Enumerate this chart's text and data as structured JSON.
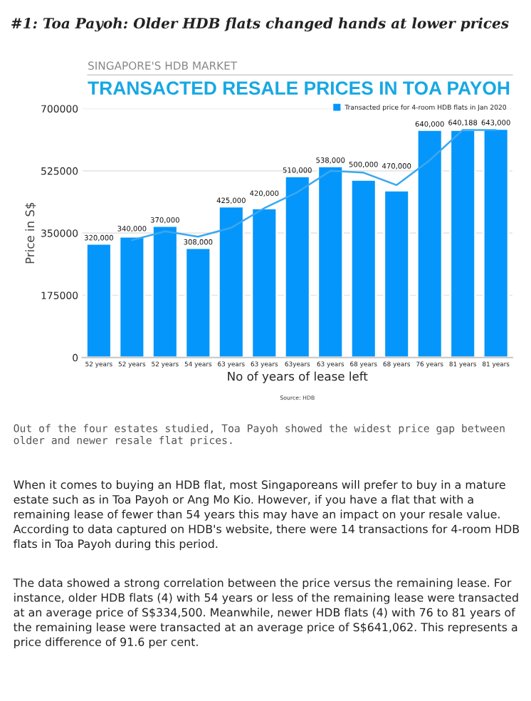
{
  "chart_data": {
    "type": "bar",
    "title": "#1: Toa Payoh: Older HDB flats changed hands at lower prices",
    "subtitle": "SINGAPORE'S HDB MARKET\nTRANSACTED RESALE PRICES IN TOA PAYOH",
    "xlabel": "No of years of lease left",
    "ylabel": "Price in S$",
    "categories": [
      "52 years",
      "52 years",
      "52 years",
      "54 years",
      "63 years",
      "63 years",
      "63years",
      "63 years",
      "68 years",
      "68 years",
      "76 years",
      "81 years",
      "81 years"
    ],
    "series": [
      {
        "name": "Transacted price for 4-room HDB flats in Jan 2020",
        "color": "#0596fb",
        "values": [
          320000,
          340000,
          370000,
          308000,
          425000,
          420000,
          510000,
          538000,
          500000,
          470000,
          640000,
          640188,
          643000
        ],
        "value_labels": [
          "320,000",
          "340,000",
          "370,000",
          "308,000",
          "425,000",
          "420,000",
          "510,000",
          "538,000",
          "500,000",
          "470,000",
          "640,000",
          "640,188",
          "643,000"
        ]
      },
      {
        "type": "line",
        "color": "#3aa8f0",
        "values": [
          null,
          330000,
          355000,
          340000,
          365000,
          420000,
          465000,
          525000,
          520000,
          485000,
          555000,
          640000,
          640000
        ]
      }
    ],
    "ylim": [
      0,
      700000
    ],
    "yticks": [
      0,
      175000,
      350000,
      525000,
      700000
    ],
    "grid": "y",
    "legend": "top right",
    "marker": "none",
    "line_style": "solid",
    "annotations": [
      "Source: HDB",
      "Out of the four estates studied, Toa Payoh showed the widest price gap between older and newer resale flat prices.",
      "When it comes to buying an HDB flat, most Singaporeans will prefer to buy in a mature estate such as in Toa Payoh or Ang Mo Kio. However, if you have a flat that with a remaining lease of fewer than 54 years this may have an impact on your resale value. According to data captured on HDB's website, there were 14 transactions for 4-room HDB flats in Toa Payoh during this period.",
      "The data showed a strong correlation between the price versus the remaining lease. For instance, older HDB flats (4) with 54 years or less of the remaining lease were transacted at an average price of S$334,500. Meanwhile, newer HDB flats (4) with 76 to 81 years of the remaining lease were transacted at an average price of S$641,062. This represents a price difference of 91.6 per cent."
    ]
  }
}
